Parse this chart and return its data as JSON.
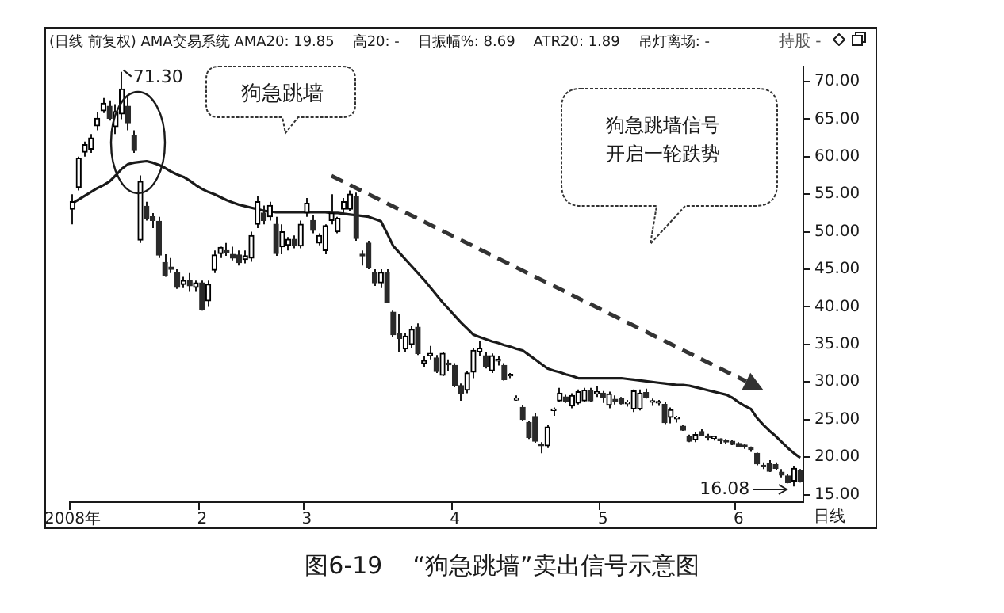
{
  "chart_data": {
    "type": "candlestick",
    "title": "(日线 前复权) AMA交易系统 AMA20: 19.85    高20: -    日振幅%: 8.69    ATR20: 1.89    吊灯离场: -",
    "annotations": [
      "狗急跳墙",
      "狗急跳墙信号开启一轮跌势",
      "日线",
      "图6-19    “狗急跳墙”卖出信号示意图",
      "持股 -",
      "71.30",
      "16.08"
    ],
    "categories": [
      "2008年",
      null,
      null,
      null,
      null,
      null,
      null,
      null,
      null,
      null,
      null,
      null,
      null,
      null,
      null,
      null,
      null,
      null,
      null,
      null,
      null,
      "2",
      null,
      null,
      null,
      null,
      null,
      null,
      null,
      null,
      null,
      null,
      null,
      null,
      null,
      null,
      null,
      null,
      "3",
      null,
      null,
      null,
      null,
      null,
      null,
      null,
      null,
      null,
      null,
      null,
      null,
      null,
      null,
      null,
      null,
      null,
      null,
      null,
      null,
      null,
      null,
      null,
      "4",
      null,
      null,
      null,
      null,
      null,
      null,
      null,
      null,
      null,
      null,
      null,
      null,
      null,
      null,
      null,
      null,
      null,
      null,
      null,
      null,
      null,
      null,
      null,
      "5",
      null,
      null,
      null,
      null,
      null,
      null,
      null,
      null,
      null,
      null,
      null,
      null,
      null,
      null,
      null,
      null,
      null,
      null,
      null,
      null,
      null,
      "6",
      null,
      null,
      null,
      null,
      null,
      null,
      null,
      null,
      null,
      null
    ],
    "ohlc": [
      [
        53,
        55,
        51,
        54
      ],
      [
        55.9,
        60,
        55.5,
        59.8
      ],
      [
        60.6,
        62,
        60,
        61.6
      ],
      [
        61,
        63,
        60.5,
        62.5
      ],
      [
        64.1,
        66,
        63.5,
        65.1
      ],
      [
        66.1,
        67.8,
        65.8,
        67.1
      ],
      [
        66.7,
        67.5,
        64.8,
        65.1
      ],
      [
        64,
        67,
        63,
        66
      ],
      [
        65.7,
        71.3,
        65,
        69
      ],
      [
        66.7,
        68,
        63.5,
        64.5
      ],
      [
        62.8,
        63.5,
        60.5,
        60.8
      ],
      [
        48.9,
        57.5,
        48.5,
        56.7
      ],
      [
        53.4,
        54,
        51.5,
        51.8
      ],
      [
        52,
        52.5,
        50.5,
        51.5
      ],
      [
        51.4,
        52,
        46.5,
        46.9
      ],
      [
        45.9,
        47,
        44,
        44.2
      ],
      [
        45.3,
        46.5,
        44.5,
        45
      ],
      [
        44.6,
        45,
        42.4,
        42.6
      ],
      [
        43,
        44,
        42.5,
        43.5
      ],
      [
        43.5,
        44.5,
        42,
        42.8
      ],
      [
        42.6,
        43.5,
        42,
        43.2
      ],
      [
        43.2,
        43.5,
        39.5,
        39.7
      ],
      [
        40.8,
        43.5,
        40,
        43
      ],
      [
        44.9,
        47.5,
        44.5,
        46.9
      ],
      [
        47.1,
        48,
        46.5,
        47.9
      ],
      [
        47.5,
        48.5,
        46.8,
        47.2
      ],
      [
        47,
        48,
        46.2,
        46.5
      ],
      [
        46.9,
        47.5,
        45.5,
        45.9
      ],
      [
        46.3,
        47.5,
        45.8,
        46.8
      ],
      [
        46.5,
        50,
        46,
        49.5
      ],
      [
        51,
        54.8,
        50.5,
        54
      ],
      [
        52.5,
        53.5,
        51,
        51.5
      ],
      [
        52,
        54,
        51.5,
        53.5
      ],
      [
        51,
        52,
        46.8,
        47.1
      ],
      [
        48,
        51,
        47,
        50
      ],
      [
        48.2,
        49.3,
        47.5,
        49
      ],
      [
        49,
        49.5,
        47.8,
        48.2
      ],
      [
        48.1,
        51.5,
        47.8,
        51
      ],
      [
        52.5,
        54.5,
        52,
        53.8
      ],
      [
        51.5,
        52.2,
        49.8,
        50.2
      ],
      [
        48.5,
        49.8,
        48.2,
        49.5
      ],
      [
        47.5,
        51,
        47,
        50.8
      ],
      [
        51.5,
        55,
        51,
        52.5
      ],
      [
        50,
        52,
        49.8,
        51.8
      ],
      [
        53,
        54.5,
        52.5,
        54
      ],
      [
        53,
        55.5,
        52.8,
        55
      ],
      [
        54.7,
        55.2,
        48.8,
        49.1
      ],
      [
        47,
        47.5,
        45.5,
        46.8
      ],
      [
        48.5,
        48.8,
        45,
        45.2
      ],
      [
        44.6,
        45,
        42.8,
        43.2
      ],
      [
        43.2,
        45,
        42.5,
        44.6
      ],
      [
        44.6,
        45,
        40.5,
        40.6
      ],
      [
        39.3,
        39.5,
        36,
        36.3
      ],
      [
        36.5,
        39,
        34,
        35.8
      ],
      [
        34.4,
        36.5,
        34,
        36.1
      ],
      [
        35,
        37.5,
        34.5,
        37
      ],
      [
        37.3,
        37.8,
        33.6,
        33.8
      ],
      [
        32.5,
        33.5,
        32,
        32.8
      ],
      [
        33.5,
        34.8,
        33,
        33.8
      ],
      [
        33.2,
        33.6,
        31.2,
        31.4
      ],
      [
        30.9,
        34,
        30.8,
        33.8
      ],
      [
        32.5,
        33,
        31.5,
        32.3
      ],
      [
        32.2,
        32.5,
        29.3,
        29.5
      ],
      [
        29.5,
        29.8,
        27.5,
        28.5
      ],
      [
        28.9,
        31.5,
        28.5,
        31.2
      ],
      [
        31.3,
        34.5,
        30.5,
        34.2
      ],
      [
        34,
        35.5,
        33.5,
        34.5
      ],
      [
        33.5,
        34,
        31.8,
        32
      ],
      [
        31.5,
        33.8,
        31.2,
        33.5
      ],
      [
        32.8,
        33.5,
        32.2,
        33
      ],
      [
        32.2,
        32.5,
        30.2,
        30.3
      ],
      [
        30.8,
        31.2,
        30.5,
        31
      ],
      [
        27.6,
        28.2,
        27.5,
        27.8
      ],
      [
        26.6,
        26.9,
        24.8,
        25
      ],
      [
        24.6,
        24.8,
        22.4,
        22.6
      ],
      [
        25.4,
        25.8,
        21.9,
        22.1
      ],
      [
        21.7,
        22,
        20.5,
        21.5
      ],
      [
        21.5,
        24.3,
        21.2,
        24
      ],
      [
        26.2,
        26.6,
        25.5,
        26.4
      ],
      [
        27.5,
        29.2,
        27.3,
        28.5
      ],
      [
        28,
        28.3,
        27.2,
        27.4
      ],
      [
        26.8,
        28.5,
        26.5,
        28.2
      ],
      [
        27.2,
        29,
        27,
        28.7
      ],
      [
        27.5,
        29.2,
        27.3,
        28.9
      ],
      [
        28.9,
        29.2,
        27.4,
        27.5
      ],
      [
        28.4,
        29.5,
        28,
        28.7
      ],
      [
        28.5,
        28.8,
        27.2,
        28
      ],
      [
        26.9,
        28.7,
        26.5,
        28.4
      ],
      [
        27.7,
        28.2,
        27,
        27.4
      ],
      [
        27.8,
        28,
        27,
        27.1
      ],
      [
        27.1,
        27.6,
        26.7,
        27.3
      ],
      [
        26.4,
        29,
        26,
        28.8
      ],
      [
        26.4,
        29,
        26.2,
        28.5
      ],
      [
        28.6,
        29.1,
        27.8,
        28
      ],
      [
        27.3,
        27.8,
        26.8,
        27.5
      ],
      [
        27.2,
        27.6,
        26.8,
        27.4
      ],
      [
        27,
        27.3,
        24.4,
        24.6
      ],
      [
        25.3,
        26.6,
        24.5,
        26.3
      ],
      [
        25.1,
        25.5,
        24.6,
        25.3
      ],
      [
        24.1,
        24.3,
        23.5,
        23.6
      ],
      [
        22.8,
        23,
        22,
        22.1
      ],
      [
        22.3,
        23.3,
        22,
        23
      ],
      [
        23.4,
        23.7,
        22.8,
        22.9
      ],
      [
        22.8,
        23.1,
        22.2,
        22.6
      ],
      [
        22.5,
        22.8,
        22.2,
        22.6
      ],
      [
        22.3,
        22.5,
        21.8,
        22.2
      ],
      [
        22.2,
        22.4,
        21.8,
        22
      ],
      [
        22.1,
        22.3,
        21.6,
        21.7
      ],
      [
        21.8,
        22,
        21.3,
        21.4
      ],
      [
        21.5,
        21.7,
        21.1,
        21.4
      ],
      [
        21.2,
        21.4,
        20.7,
        21
      ],
      [
        20.5,
        20.6,
        18.9,
        19.1
      ],
      [
        18.8,
        19.3,
        18.4,
        18.7
      ],
      [
        19.1,
        19.6,
        18,
        18.1
      ],
      [
        19,
        19.3,
        18.3,
        18.5
      ],
      [
        18,
        18.4,
        17.3,
        17.6
      ],
      [
        17.5,
        17.8,
        16.5,
        16.6
      ],
      [
        16.8,
        18.8,
        16.08,
        18.5
      ],
      [
        18.2,
        18.4,
        16.6,
        16.8
      ]
    ],
    "series": [
      {
        "type": "line",
        "color": "#1a1a1a",
        "values": [
          53.8,
          54.3,
          54.8,
          55.3,
          55.8,
          56.2,
          56.7,
          57.5,
          58.4,
          59,
          59.2,
          59.3,
          59.4,
          59.2,
          58.9,
          58.5,
          58,
          57.6,
          57.3,
          56.8,
          56.2,
          55.7,
          55.3,
          55,
          54.6,
          54.2,
          53.9,
          53.6,
          53.4,
          53.2,
          53,
          52.8,
          52.7,
          52.6,
          52.6,
          52.6,
          52.6,
          52.6,
          52.6,
          52.6,
          52.6,
          52.6,
          52.5,
          52.5,
          52.4,
          52.3,
          52.2,
          52.1,
          52,
          51.7,
          51.4,
          49.8,
          48.1,
          47.2,
          46.3,
          45.4,
          44.5,
          43.6,
          42.6,
          41.6,
          40.6,
          39.7,
          38.8,
          37.9,
          37.1,
          36.3,
          36,
          35.7,
          35.4,
          35.2,
          34.9,
          34.7,
          34.4,
          34.2,
          33.6,
          33,
          32.4,
          31.8,
          31.5,
          31.3,
          31,
          30.8,
          30.5,
          30.5,
          30.5,
          30.5,
          30.5,
          30.5,
          30.5,
          30.5,
          30.4,
          30.3,
          30.2,
          30.1,
          30,
          29.9,
          29.8,
          29.7,
          29.6,
          29.6,
          29.5,
          29.3,
          29.1,
          28.9,
          28.7,
          28.5,
          28.3,
          27.9,
          27.3,
          26.8,
          26.4,
          25.2,
          24.3,
          23.5,
          22.8,
          22,
          21.2,
          20.5,
          19.9
        ]
      }
    ],
    "ylim": [
      14,
      72
    ],
    "yticks": [
      {
        "value": 15,
        "label": "15.00"
      },
      {
        "value": 20,
        "label": "20.00"
      },
      {
        "value": 25,
        "label": "25.00"
      },
      {
        "value": 30,
        "label": "30.00"
      },
      {
        "value": 35,
        "label": "35.00"
      },
      {
        "value": 40,
        "label": "40.00"
      },
      {
        "value": 45,
        "label": "45.00"
      },
      {
        "value": 50,
        "label": "50.00"
      },
      {
        "value": 55,
        "label": "55.00"
      },
      {
        "value": 60,
        "label": "60.00"
      },
      {
        "value": 65,
        "label": "65.00"
      },
      {
        "value": 70,
        "label": "70.00"
      }
    ]
  }
}
